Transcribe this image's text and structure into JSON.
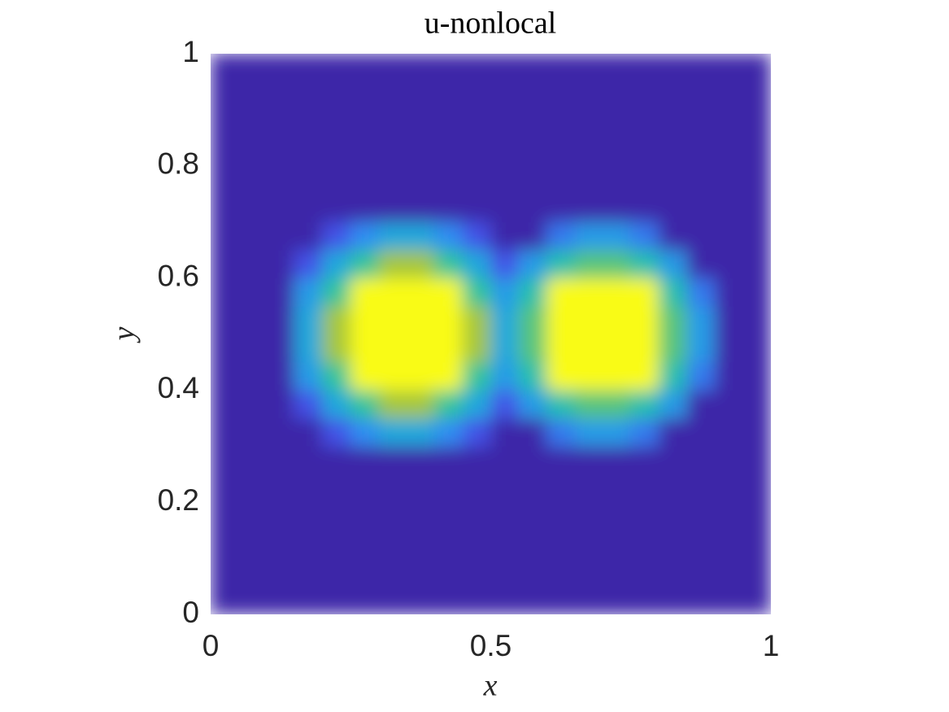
{
  "chart_data": {
    "type": "heatmap",
    "title": "u-nonlocal",
    "x_label": "x",
    "y_label": "y",
    "x": [
      0.025,
      0.075,
      0.125,
      0.175,
      0.225,
      0.275,
      0.325,
      0.375,
      0.425,
      0.475,
      0.525,
      0.575,
      0.625,
      0.675,
      0.725,
      0.775,
      0.825,
      0.875,
      0.925,
      0.975
    ],
    "y": [
      0.025,
      0.075,
      0.125,
      0.175,
      0.225,
      0.275,
      0.325,
      0.375,
      0.425,
      0.475,
      0.525,
      0.575,
      0.625,
      0.675,
      0.725,
      0.775,
      0.825,
      0.875,
      0.925,
      0.975
    ],
    "z": [
      [
        0,
        0,
        0,
        0,
        0,
        0,
        0,
        0,
        0,
        0,
        0,
        0,
        0,
        0,
        0,
        0,
        0,
        0,
        0,
        0
      ],
      [
        0,
        0,
        0,
        0,
        0,
        0,
        0,
        0,
        0,
        0,
        0,
        0,
        0,
        0,
        0,
        0,
        0,
        0,
        0,
        0
      ],
      [
        0,
        0,
        0,
        0,
        0,
        0,
        0,
        0,
        0,
        0,
        0,
        0,
        0,
        0,
        0,
        0,
        0,
        0,
        0,
        0
      ],
      [
        0,
        0,
        0,
        0,
        0,
        0,
        0,
        0,
        0,
        0,
        0,
        0,
        0,
        0,
        0,
        0,
        0,
        0,
        0,
        0
      ],
      [
        0,
        0,
        0,
        0,
        0,
        0,
        0,
        0,
        0,
        0,
        0,
        0,
        0,
        0,
        0,
        0,
        0,
        0,
        0,
        0
      ],
      [
        0,
        0,
        0,
        0,
        0,
        0,
        0,
        0,
        0,
        0,
        0,
        0,
        0,
        0,
        0,
        0,
        0,
        0,
        0,
        0
      ],
      [
        0,
        0,
        0,
        0,
        0.15,
        0.3,
        0.4,
        0.4,
        0.3,
        0.15,
        0,
        0,
        0.25,
        0.35,
        0.35,
        0.25,
        0,
        0,
        0,
        0
      ],
      [
        0,
        0,
        0,
        0.15,
        0.4,
        0.6,
        0.75,
        0.75,
        0.6,
        0.4,
        0.15,
        0.35,
        0.55,
        0.65,
        0.65,
        0.55,
        0.35,
        0,
        0,
        0
      ],
      [
        0,
        0,
        0,
        0.35,
        0.6,
        1,
        1,
        1,
        1,
        0.6,
        0.35,
        0.55,
        1,
        1,
        1,
        1,
        0.55,
        0.25,
        0,
        0
      ],
      [
        0,
        0,
        0,
        0.4,
        0.75,
        1,
        1,
        1,
        1,
        0.75,
        0.4,
        0.65,
        1,
        1,
        1,
        1,
        0.65,
        0.35,
        0,
        0
      ],
      [
        0,
        0,
        0,
        0.4,
        0.75,
        1,
        1,
        1,
        1,
        0.75,
        0.4,
        0.65,
        1,
        1,
        1,
        1,
        0.65,
        0.35,
        0,
        0
      ],
      [
        0,
        0,
        0,
        0.35,
        0.6,
        1,
        1,
        1,
        1,
        0.6,
        0.35,
        0.55,
        1,
        1,
        1,
        1,
        0.55,
        0.25,
        0,
        0
      ],
      [
        0,
        0,
        0,
        0.15,
        0.4,
        0.6,
        0.75,
        0.75,
        0.6,
        0.4,
        0.15,
        0.35,
        0.55,
        0.65,
        0.65,
        0.55,
        0.35,
        0,
        0,
        0
      ],
      [
        0,
        0,
        0,
        0,
        0.15,
        0.3,
        0.4,
        0.4,
        0.3,
        0.15,
        0,
        0,
        0.25,
        0.35,
        0.35,
        0.25,
        0,
        0,
        0,
        0
      ],
      [
        0,
        0,
        0,
        0,
        0,
        0,
        0,
        0,
        0,
        0,
        0,
        0,
        0,
        0,
        0,
        0,
        0,
        0,
        0,
        0
      ],
      [
        0,
        0,
        0,
        0,
        0,
        0,
        0,
        0,
        0,
        0,
        0,
        0,
        0,
        0,
        0,
        0,
        0,
        0,
        0,
        0
      ],
      [
        0,
        0,
        0,
        0,
        0,
        0,
        0,
        0,
        0,
        0,
        0,
        0,
        0,
        0,
        0,
        0,
        0,
        0,
        0,
        0
      ],
      [
        0,
        0,
        0,
        0,
        0,
        0,
        0,
        0,
        0,
        0,
        0,
        0,
        0,
        0,
        0,
        0,
        0,
        0,
        0,
        0
      ],
      [
        0,
        0,
        0,
        0,
        0,
        0,
        0,
        0,
        0,
        0,
        0,
        0,
        0,
        0,
        0,
        0,
        0,
        0,
        0,
        0
      ],
      [
        0,
        0,
        0,
        0,
        0,
        0,
        0,
        0,
        0,
        0,
        0,
        0,
        0,
        0,
        0,
        0,
        0,
        0,
        0,
        0
      ]
    ],
    "xlim": [
      0,
      1
    ],
    "ylim": [
      0,
      1
    ],
    "xticks": [
      0,
      0.5,
      1
    ],
    "yticks": [
      0,
      0.2,
      0.4,
      0.6,
      0.8,
      1
    ]
  }
}
